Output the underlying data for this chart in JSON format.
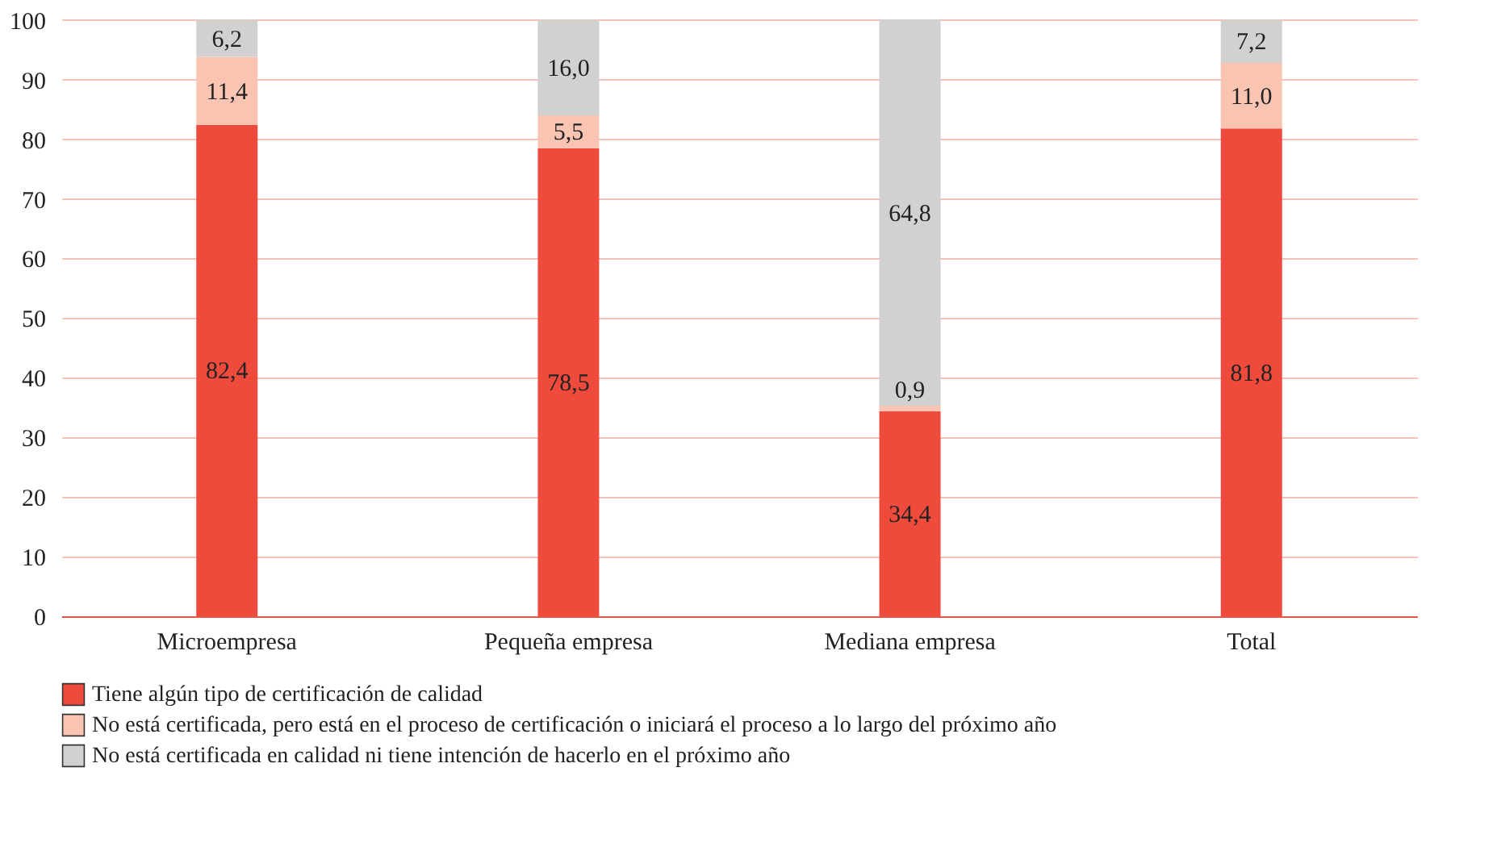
{
  "chart_data": {
    "type": "bar",
    "stacked": true,
    "categories": [
      "Microempresa",
      "Pequeña empresa",
      "Mediana empresa",
      "Total"
    ],
    "series": [
      {
        "name": "Tiene algún tipo de certificación de calidad",
        "color": "#ee4b3d",
        "values": [
          82.4,
          78.5,
          34.4,
          81.8
        ],
        "value_labels": [
          "82,4",
          "78,5",
          "34,4",
          "81,8"
        ]
      },
      {
        "name": "No está certificada, pero está en el proceso de certificación o iniciará el proceso a lo largo del próximo año",
        "color": "#f9c5b2",
        "values": [
          11.4,
          5.5,
          0.9,
          11.0
        ],
        "value_labels": [
          "11,4",
          "5,5",
          "0,9",
          "11,0"
        ]
      },
      {
        "name": "No está certificada en calidad ni tiene intención de hacerlo en el próximo año",
        "color": "#d1d1d1",
        "values": [
          6.2,
          16.0,
          64.8,
          7.2
        ],
        "value_labels": [
          "6,2",
          "16,0",
          "64,8",
          "7,2"
        ]
      }
    ],
    "ylim": [
      0,
      100.1
    ],
    "yticks": [
      0,
      10,
      20,
      30,
      40,
      50,
      60,
      70,
      80,
      90,
      100
    ],
    "grid": "y",
    "legend": "bottom left"
  }
}
